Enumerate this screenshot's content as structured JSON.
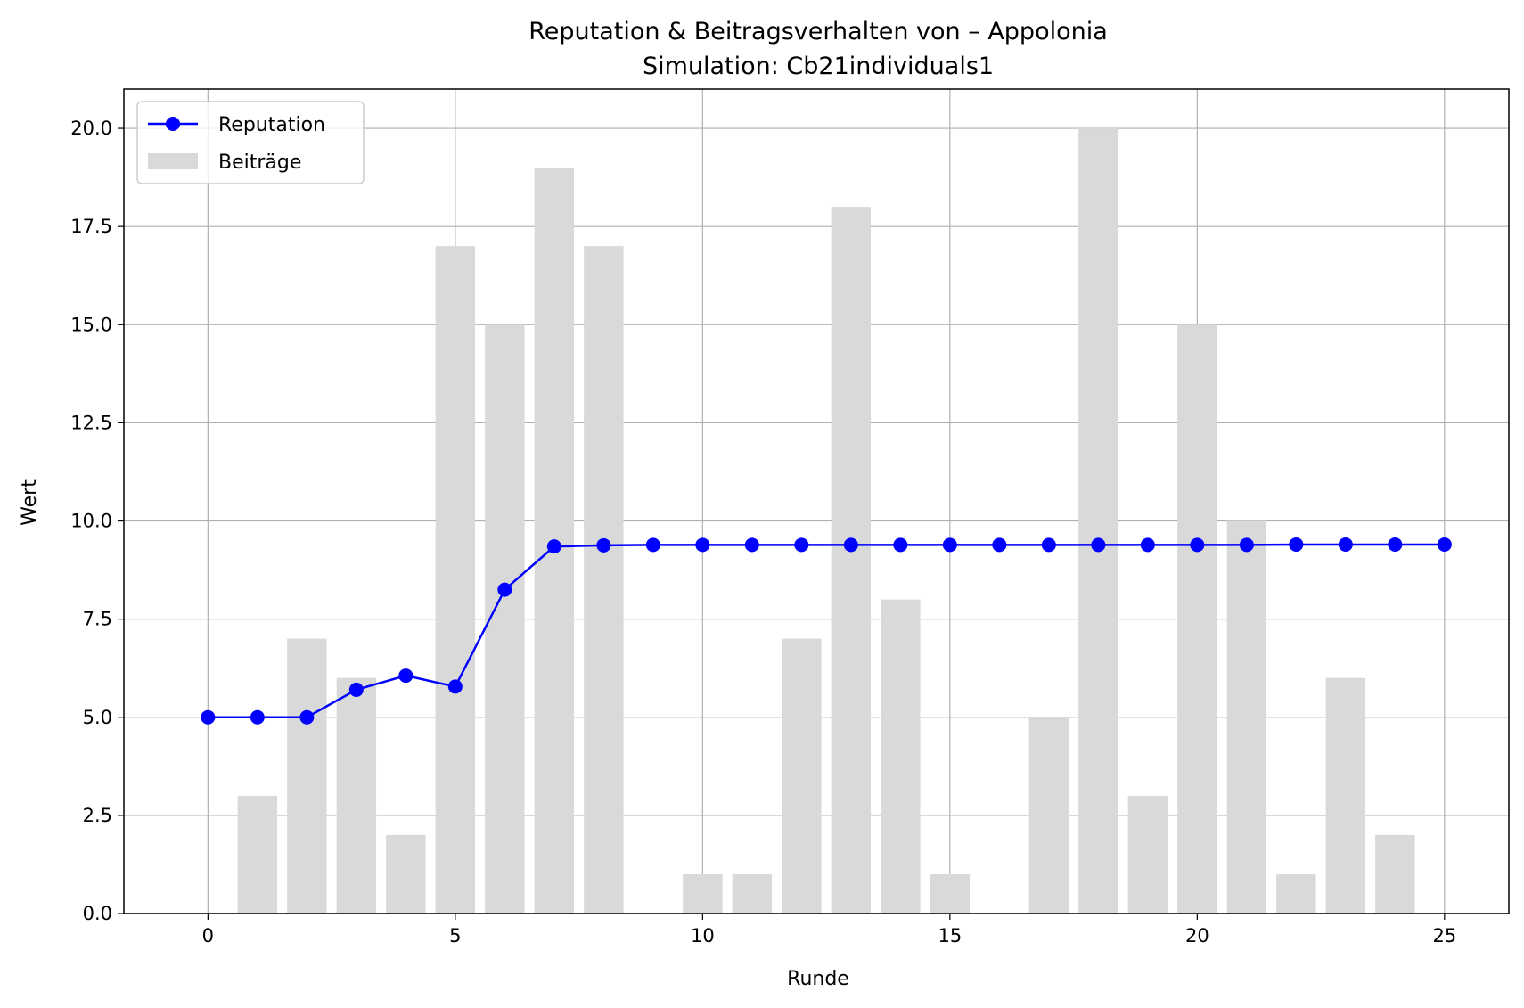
{
  "chart_data": {
    "type": "bar+line",
    "title": "Reputation & Beitragsverhalten von – Appolonia",
    "subtitle": "Simulation: Cb21individuals1",
    "xlabel": "Runde",
    "ylabel": "Wert",
    "xlim": [
      -1.7,
      26.3
    ],
    "ylim": [
      0,
      21
    ],
    "xticks": [
      0,
      5,
      10,
      15,
      20,
      25
    ],
    "xtick_labels": [
      "0",
      "5",
      "10",
      "15",
      "20",
      "25"
    ],
    "yticks": [
      0,
      2.5,
      5,
      7.5,
      10,
      12.5,
      15,
      17.5,
      20
    ],
    "ytick_labels": [
      "0.0",
      "2.5",
      "5.0",
      "7.5",
      "10.0",
      "12.5",
      "15.0",
      "17.5",
      "20.0"
    ],
    "grid": true,
    "legend_position": "top-left",
    "x": [
      0,
      1,
      2,
      3,
      4,
      5,
      6,
      7,
      8,
      9,
      10,
      11,
      12,
      13,
      14,
      15,
      16,
      17,
      18,
      19,
      20,
      21,
      22,
      23,
      24,
      25
    ],
    "series": [
      {
        "name": "Reputation",
        "kind": "line",
        "color": "#0000ff",
        "values": [
          5.0,
          5.0,
          5.0,
          5.7,
          6.06,
          5.78,
          8.25,
          9.35,
          9.38,
          9.39,
          9.39,
          9.39,
          9.39,
          9.39,
          9.39,
          9.39,
          9.39,
          9.39,
          9.39,
          9.39,
          9.39,
          9.39,
          9.4,
          9.4,
          9.4,
          9.4
        ]
      },
      {
        "name": "Beiträge",
        "kind": "bar",
        "color": "#d9d9d9",
        "values": [
          0,
          3,
          7,
          6,
          2,
          17,
          15,
          19,
          17,
          0,
          1,
          1,
          7,
          18,
          8,
          1,
          0,
          5,
          20,
          3,
          15,
          10,
          1,
          6,
          2,
          0
        ]
      }
    ]
  }
}
